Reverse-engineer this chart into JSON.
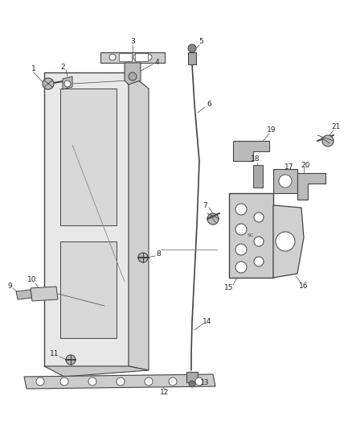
{
  "background_color": "#ffffff",
  "line_color": "#444444",
  "part_fill": "#cccccc",
  "part_fill_light": "#e8e8e8",
  "part_fill_dark": "#aaaaaa",
  "fig_width": 4.38,
  "fig_height": 5.33,
  "dpi": 100,
  "label_fontsize": 6.5,
  "label_color": "#222222"
}
